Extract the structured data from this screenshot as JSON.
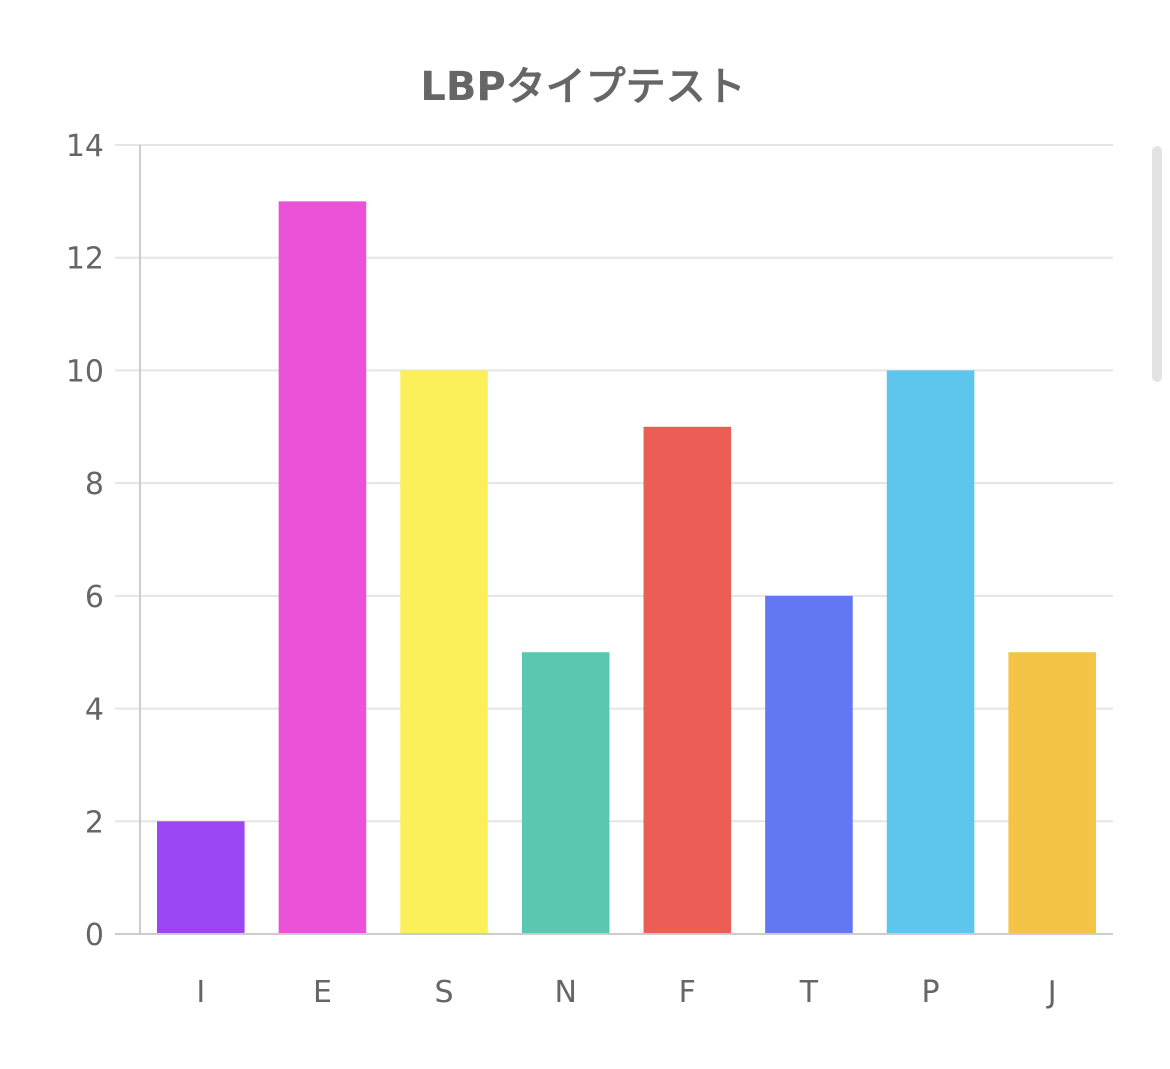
{
  "chart_data": {
    "type": "bar",
    "title": "LBPタイプテスト",
    "xlabel": "",
    "ylabel": "",
    "categories": [
      "I",
      "E",
      "S",
      "N",
      "F",
      "T",
      "P",
      "J"
    ],
    "values": [
      2,
      13,
      10,
      5,
      9,
      6,
      10,
      5
    ],
    "colors": [
      "#9a46f3",
      "#eb52d8",
      "#fcf05a",
      "#5cc7b1",
      "#eb5d55",
      "#6377f3",
      "#5ec5ec",
      "#f4c446"
    ],
    "ylim": [
      0,
      14
    ],
    "yticks": [
      "0",
      "2",
      "4",
      "6",
      "8",
      "10",
      "12",
      "14"
    ],
    "grid": true,
    "legend": "none"
  }
}
